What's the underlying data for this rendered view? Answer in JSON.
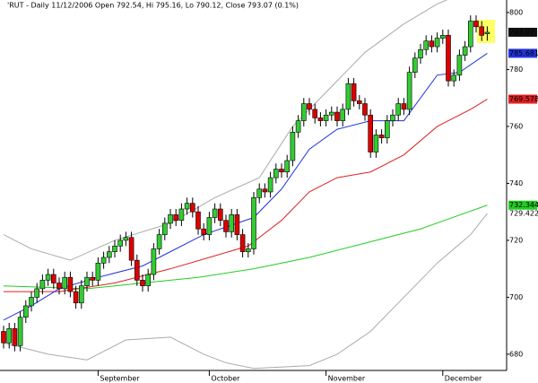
{
  "chart_data": {
    "type": "candlestick",
    "title": "'RUT - Daily 11/12/2006 Open 792.54, Hi 795.16, Lo 790.12, Close 793.07 (0.1%)",
    "categories": [
      null,
      null,
      null,
      null,
      null,
      null,
      null,
      null,
      null,
      null,
      null,
      null,
      null,
      null,
      null,
      null,
      null,
      "September",
      null,
      null,
      null,
      null,
      null,
      null,
      null,
      null,
      null,
      null,
      null,
      null,
      null,
      null,
      null,
      null,
      null,
      null,
      null,
      "October",
      null,
      null,
      null,
      null,
      null,
      null,
      null,
      null,
      null,
      null,
      null,
      null,
      null,
      null,
      null,
      null,
      null,
      null,
      null,
      null,
      "November",
      null,
      null,
      null,
      null,
      null,
      null,
      null,
      null,
      null,
      null,
      null,
      null,
      null,
      null,
      null,
      null,
      null,
      null,
      null,
      null,
      "December",
      null,
      null,
      null,
      null,
      null,
      null,
      null,
      null
    ],
    "open": [
      688,
      684,
      689,
      683,
      693,
      697,
      700,
      703,
      706,
      708,
      705,
      703,
      707,
      702,
      698,
      704,
      707,
      706,
      712,
      714,
      716,
      718,
      720,
      721,
      713,
      706,
      704,
      708,
      717,
      722,
      726,
      729,
      727,
      731,
      733,
      730,
      724,
      722,
      728,
      731,
      727,
      723,
      729,
      722,
      716,
      717,
      735,
      738,
      737,
      742,
      745,
      744,
      748,
      758,
      762,
      768,
      766,
      763,
      762,
      764,
      765,
      762,
      766,
      775,
      769,
      768,
      764,
      751,
      757,
      756,
      762,
      764,
      768,
      766,
      779,
      784,
      787,
      790,
      788,
      791,
      792,
      776,
      778,
      785,
      788,
      797,
      795,
      792.54
    ],
    "high": [
      690,
      691,
      691,
      695,
      699,
      702,
      705,
      708,
      710,
      710,
      707,
      709,
      709,
      704,
      706,
      709,
      709,
      714,
      716,
      718,
      720,
      722,
      723,
      723,
      715,
      708,
      710,
      719,
      724,
      728,
      731,
      731,
      733,
      735,
      735,
      732,
      726,
      730,
      733,
      733,
      729,
      731,
      731,
      724,
      719,
      737,
      740,
      740,
      744,
      747,
      747,
      750,
      760,
      764,
      770,
      770,
      768,
      765,
      766,
      767,
      767,
      768,
      777,
      777,
      771,
      770,
      766,
      759,
      759,
      764,
      766,
      770,
      770,
      781,
      786,
      789,
      792,
      792,
      793,
      794,
      794,
      780,
      787,
      790,
      799,
      799,
      797,
      795.16
    ],
    "low": [
      682,
      682,
      681,
      681,
      691,
      695,
      698,
      701,
      704,
      703,
      701,
      701,
      700,
      696,
      696,
      702,
      704,
      704,
      710,
      712,
      714,
      716,
      718,
      711,
      704,
      702,
      702,
      706,
      715,
      720,
      724,
      725,
      725,
      729,
      728,
      722,
      720,
      720,
      726,
      725,
      721,
      721,
      720,
      714,
      714,
      715,
      733,
      735,
      735,
      740,
      742,
      742,
      746,
      756,
      760,
      764,
      761,
      760,
      760,
      762,
      760,
      760,
      764,
      767,
      766,
      762,
      749,
      749,
      754,
      754,
      760,
      762,
      764,
      764,
      777,
      782,
      785,
      786,
      786,
      789,
      774,
      774,
      776,
      783,
      786,
      793,
      790,
      790.12
    ],
    "close": [
      684,
      689,
      683,
      693,
      697,
      700,
      703,
      706,
      708,
      705,
      703,
      707,
      702,
      698,
      704,
      707,
      706,
      712,
      714,
      716,
      718,
      720,
      721,
      713,
      706,
      704,
      708,
      717,
      722,
      726,
      729,
      727,
      731,
      733,
      730,
      724,
      722,
      728,
      731,
      727,
      723,
      729,
      722,
      716,
      717,
      735,
      738,
      737,
      742,
      745,
      744,
      748,
      758,
      762,
      768,
      766,
      763,
      762,
      764,
      765,
      762,
      766,
      775,
      769,
      768,
      764,
      751,
      757,
      756,
      762,
      764,
      768,
      766,
      779,
      784,
      787,
      790,
      788,
      791,
      792,
      776,
      778,
      785,
      788,
      797,
      795,
      792,
      793.07
    ],
    "up_color": "#33cc33",
    "down_color": "#dd0000",
    "lines": [
      {
        "color": "#aaaaaa",
        "x": [
          0,
          5,
          12,
          20,
          30,
          38,
          46,
          52,
          58,
          65,
          72,
          78,
          84,
          87
        ],
        "values": [
          722,
          717,
          713,
          720,
          726,
          735,
          742,
          760,
          772,
          786,
          796,
          803,
          808,
          808.603
        ]
      },
      {
        "color": "#aaaaaa",
        "x": [
          0,
          8,
          15,
          22,
          30,
          36,
          40,
          45,
          55,
          60,
          66,
          72,
          78,
          84,
          87
        ],
        "values": [
          684,
          680,
          678,
          685,
          686,
          680,
          677,
          675,
          676,
          680,
          688,
          700,
          712,
          722,
          729.422
        ]
      },
      {
        "color": "#22cc22",
        "x": [
          0,
          15,
          25,
          35,
          45,
          55,
          65,
          75,
          87
        ],
        "values": [
          704,
          703,
          705,
          707,
          710,
          714,
          719,
          724,
          732.344
        ]
      },
      {
        "color": "#dd2222",
        "x": [
          0,
          10,
          20,
          30,
          37,
          44,
          50,
          55,
          60,
          66,
          72,
          78,
          84,
          87
        ],
        "values": [
          702,
          702,
          705,
          710,
          714,
          718,
          727,
          737,
          742,
          744,
          750,
          760,
          766,
          769.578
        ]
      },
      {
        "color": "#2233dd",
        "x": [
          0,
          5,
          10,
          17,
          25,
          30,
          36,
          42,
          45,
          50,
          55,
          60,
          66,
          72,
          78,
          82,
          87
        ],
        "values": [
          692,
          697,
          703,
          707,
          711,
          716,
          722,
          726,
          728,
          738,
          752,
          759,
          762,
          762,
          778,
          779,
          785.681
        ]
      }
    ],
    "ylim": [
      674.3,
      804.4
    ],
    "yticks": [
      680,
      700,
      720,
      740,
      760,
      780,
      800
    ]
  }
}
